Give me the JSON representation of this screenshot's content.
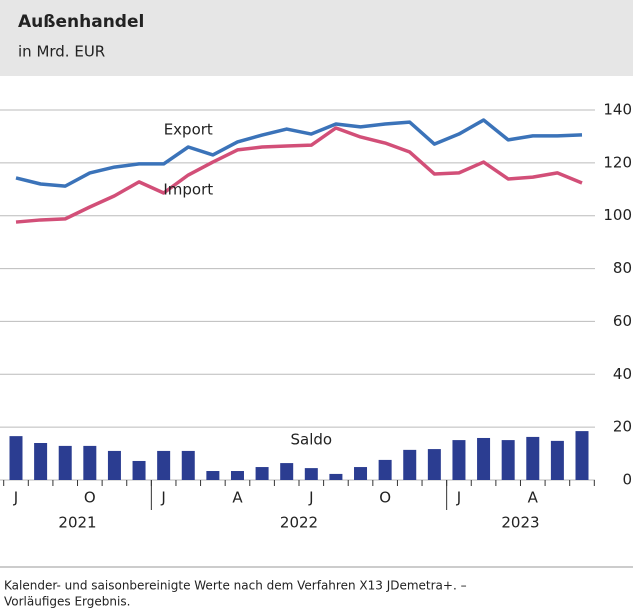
{
  "chart_data": {
    "type": "line",
    "title": "Außenhandel",
    "subtitle": "in Mrd. EUR",
    "categories": [
      "J",
      null,
      null,
      "O",
      null,
      null,
      "J",
      null,
      null,
      "A",
      null,
      null,
      "J",
      null,
      null,
      "O",
      null,
      null,
      "J",
      null,
      null,
      "A",
      null,
      null
    ],
    "years": [
      "2021",
      "2022",
      "2023"
    ],
    "ylim": [
      0,
      140
    ],
    "yticks": [
      0,
      20,
      40,
      60,
      80,
      100,
      120,
      140
    ],
    "grid": true,
    "series": [
      {
        "name": "Export",
        "type": "line",
        "color": "#3b73b9",
        "values": [
          114.3,
          112,
          111.2,
          116.2,
          118.4,
          119.6,
          119.6,
          126,
          123,
          127.9,
          130.5,
          132.8,
          130.9,
          134.7,
          133.6,
          134.7,
          135.4,
          127.1,
          130.9,
          136.2,
          128.7,
          130.2,
          130.2,
          130.6
        ]
      },
      {
        "name": "Import",
        "type": "line",
        "color": "#d24f78",
        "values": [
          97.6,
          98.4,
          98.8,
          103.3,
          107.5,
          112.8,
          108.6,
          115.4,
          120.3,
          124.9,
          126,
          126.4,
          126.7,
          133.2,
          129.8,
          127.5,
          124.1,
          115.8,
          116.2,
          120.3,
          113.9,
          114.6,
          116.2,
          112.4
        ]
      },
      {
        "name": "Saldo",
        "type": "bar",
        "color": "#2b3d91",
        "values": [
          16.6,
          14,
          12.9,
          12.9,
          11,
          7.2,
          11,
          11,
          3.4,
          3.4,
          4.9,
          6.4,
          4.5,
          2.3,
          4.9,
          7.6,
          11.4,
          11.7,
          15.1,
          15.9,
          15.1,
          16.3,
          14.8,
          18.5
        ]
      }
    ],
    "notes": [
      "Kalender- und saisonbereinigte Werte nach dem Verfahren X13 JDemetra+. –",
      "Vorläufiges Ergebnis."
    ]
  }
}
